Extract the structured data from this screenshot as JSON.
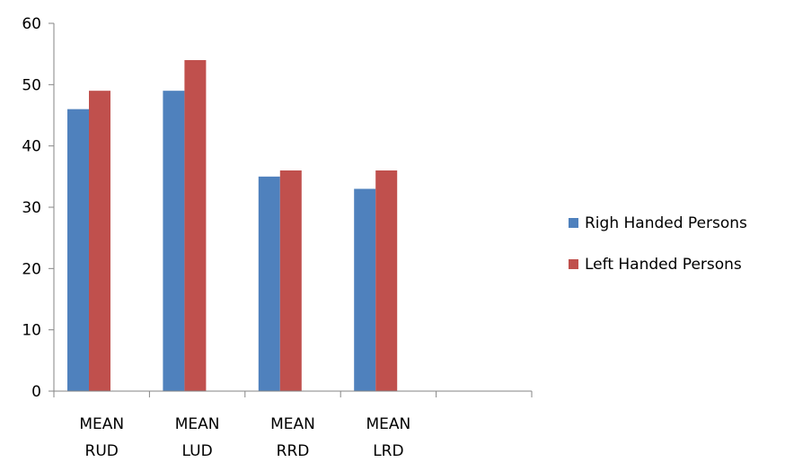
{
  "chart_data": {
    "type": "bar",
    "title": "",
    "xlabel": "",
    "ylabel": "",
    "categories": [
      [
        "MEAN",
        "RUD"
      ],
      [
        "MEAN",
        "LUD"
      ],
      [
        "MEAN",
        "RRD"
      ],
      [
        "MEAN",
        "LRD"
      ],
      [
        "",
        ""
      ]
    ],
    "series": [
      {
        "name": "Righ Handed Persons",
        "color": "#4f81bd",
        "values": [
          46,
          49,
          35,
          33,
          null
        ]
      },
      {
        "name": "Left Handed Persons",
        "color": "#c0504d",
        "values": [
          49,
          54,
          36,
          36,
          null
        ]
      }
    ],
    "ylim": [
      0,
      60
    ],
    "yticks": [
      0,
      10,
      20,
      30,
      40,
      50,
      60
    ],
    "grid": false,
    "legend_position": "right"
  }
}
